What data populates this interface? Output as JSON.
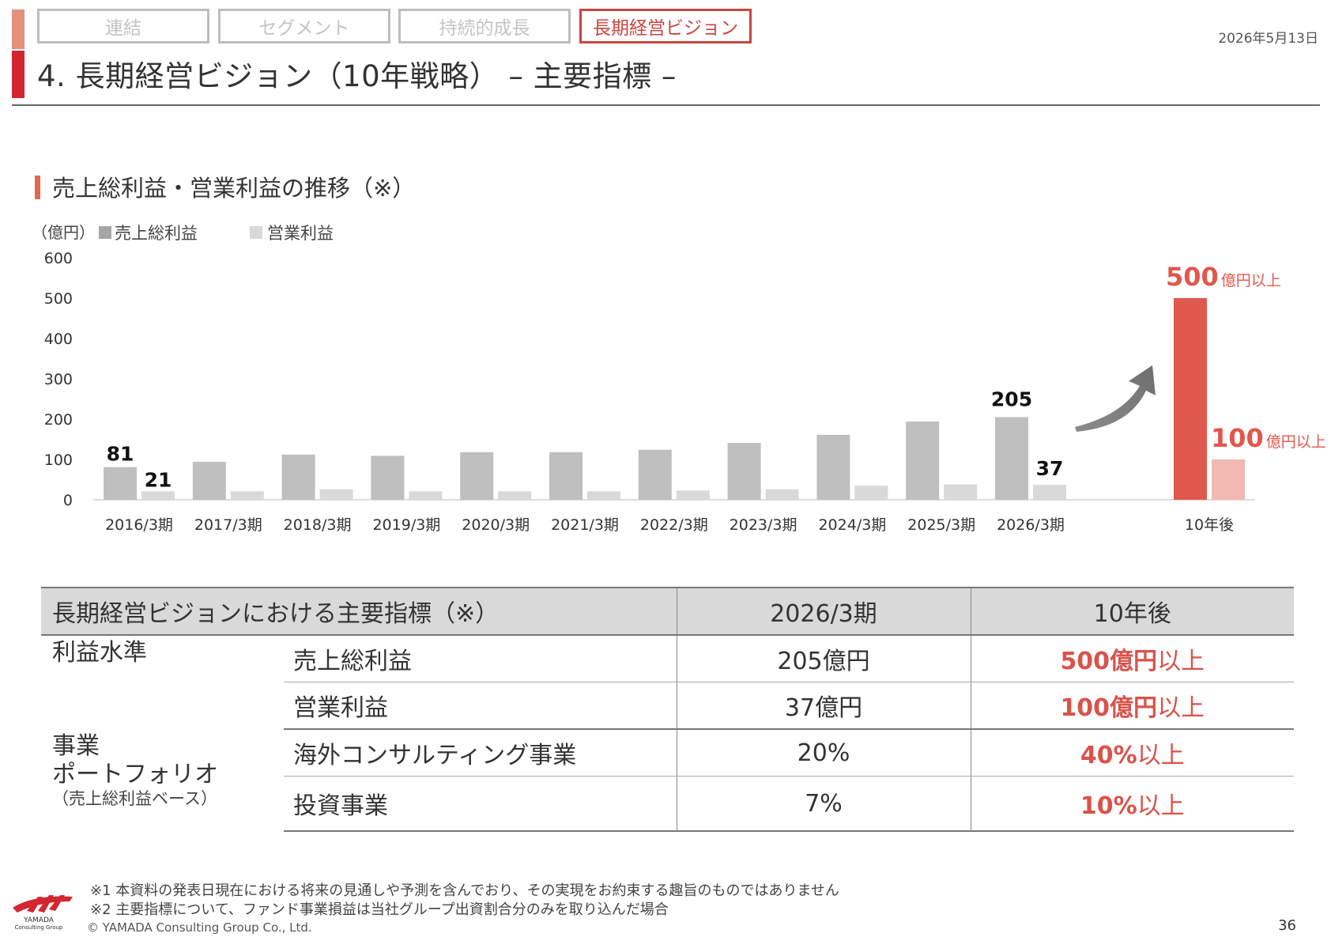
{
  "header": {
    "tabs": [
      {
        "label": "連結",
        "active": false
      },
      {
        "label": "セグメント",
        "active": false
      },
      {
        "label": "持続的成長",
        "active": false
      },
      {
        "label": "長期経営ビジョン",
        "active": true
      }
    ],
    "date": "2026年5月13日",
    "title": "4. 長期経営ビジョン（10年戦略） – 主要指標 –"
  },
  "section": {
    "title": "売上総利益・営業利益の推移（※）",
    "unit": "（億円）"
  },
  "chart_data": {
    "type": "bar",
    "categories": [
      "2016/3期",
      "2017/3期",
      "2018/3期",
      "2019/3期",
      "2020/3期",
      "2021/3期",
      "2022/3期",
      "2023/3期",
      "2024/3期",
      "2025/3期",
      "2026/3期",
      "10年後"
    ],
    "series": [
      {
        "name": "売上総利益",
        "values": [
          81,
          94,
          112,
          109,
          118,
          118,
          124,
          141,
          161,
          194,
          205,
          500
        ]
      },
      {
        "name": "営業利益",
        "values": [
          21,
          21,
          26,
          21,
          21,
          21,
          23,
          26,
          35,
          38,
          37,
          100
        ]
      }
    ],
    "ylim": [
      0,
      600
    ],
    "yticks": [
      "600",
      "500",
      "400",
      "300",
      "200",
      "100",
      "0"
    ],
    "data_labels": {
      "first_gross": "81",
      "first_op": "21",
      "last_gross": "205",
      "last_op": "37",
      "target_gross_num": "500",
      "target_op_num": "100",
      "target_suffix": "億円以上"
    },
    "colors": {
      "gross": "#bfbfbf",
      "op": "#d9d9d9",
      "target_gross": "#e0584b",
      "target_op": "#f2b9b2",
      "target_label": "#e0584b"
    },
    "legend_position": "top-left"
  },
  "table": {
    "header": [
      "長期経営ビジョンにおける主要指標（※）",
      "2026/3期",
      "10年後"
    ],
    "groups": [
      {
        "name": "利益水準",
        "rows": [
          {
            "label": "売上総利益",
            "current": "205億円",
            "target": "500億円",
            "target_suffix": "以上"
          },
          {
            "label": "営業利益",
            "current": "37億円",
            "target": "100億円",
            "target_suffix": "以上"
          }
        ]
      },
      {
        "name_line1": "事業",
        "name_line2": "ポートフォリオ",
        "name_note": "（売上総利益ベース）",
        "rows": [
          {
            "label": "海外コンサルティング事業",
            "current": "20%",
            "target": "40%",
            "target_suffix": "以上"
          },
          {
            "label": "投資事業",
            "current": "7%",
            "target": "10%",
            "target_suffix": "以上"
          }
        ]
      }
    ]
  },
  "footer": {
    "note1": "※1 本資料の発表日現在における将来の見通しや予測を含んでおり、その実現をお約束する趣旨のものではありません",
    "note2": "※2 主要指標について、ファンド事業損益は当社グループ出資割合分のみを取り込んだ場合",
    "copyright": "© YAMADA Consulting Group Co., Ltd.",
    "logo_line1": "YAMADA",
    "logo_line2": "Consulting Group",
    "page": "36"
  }
}
